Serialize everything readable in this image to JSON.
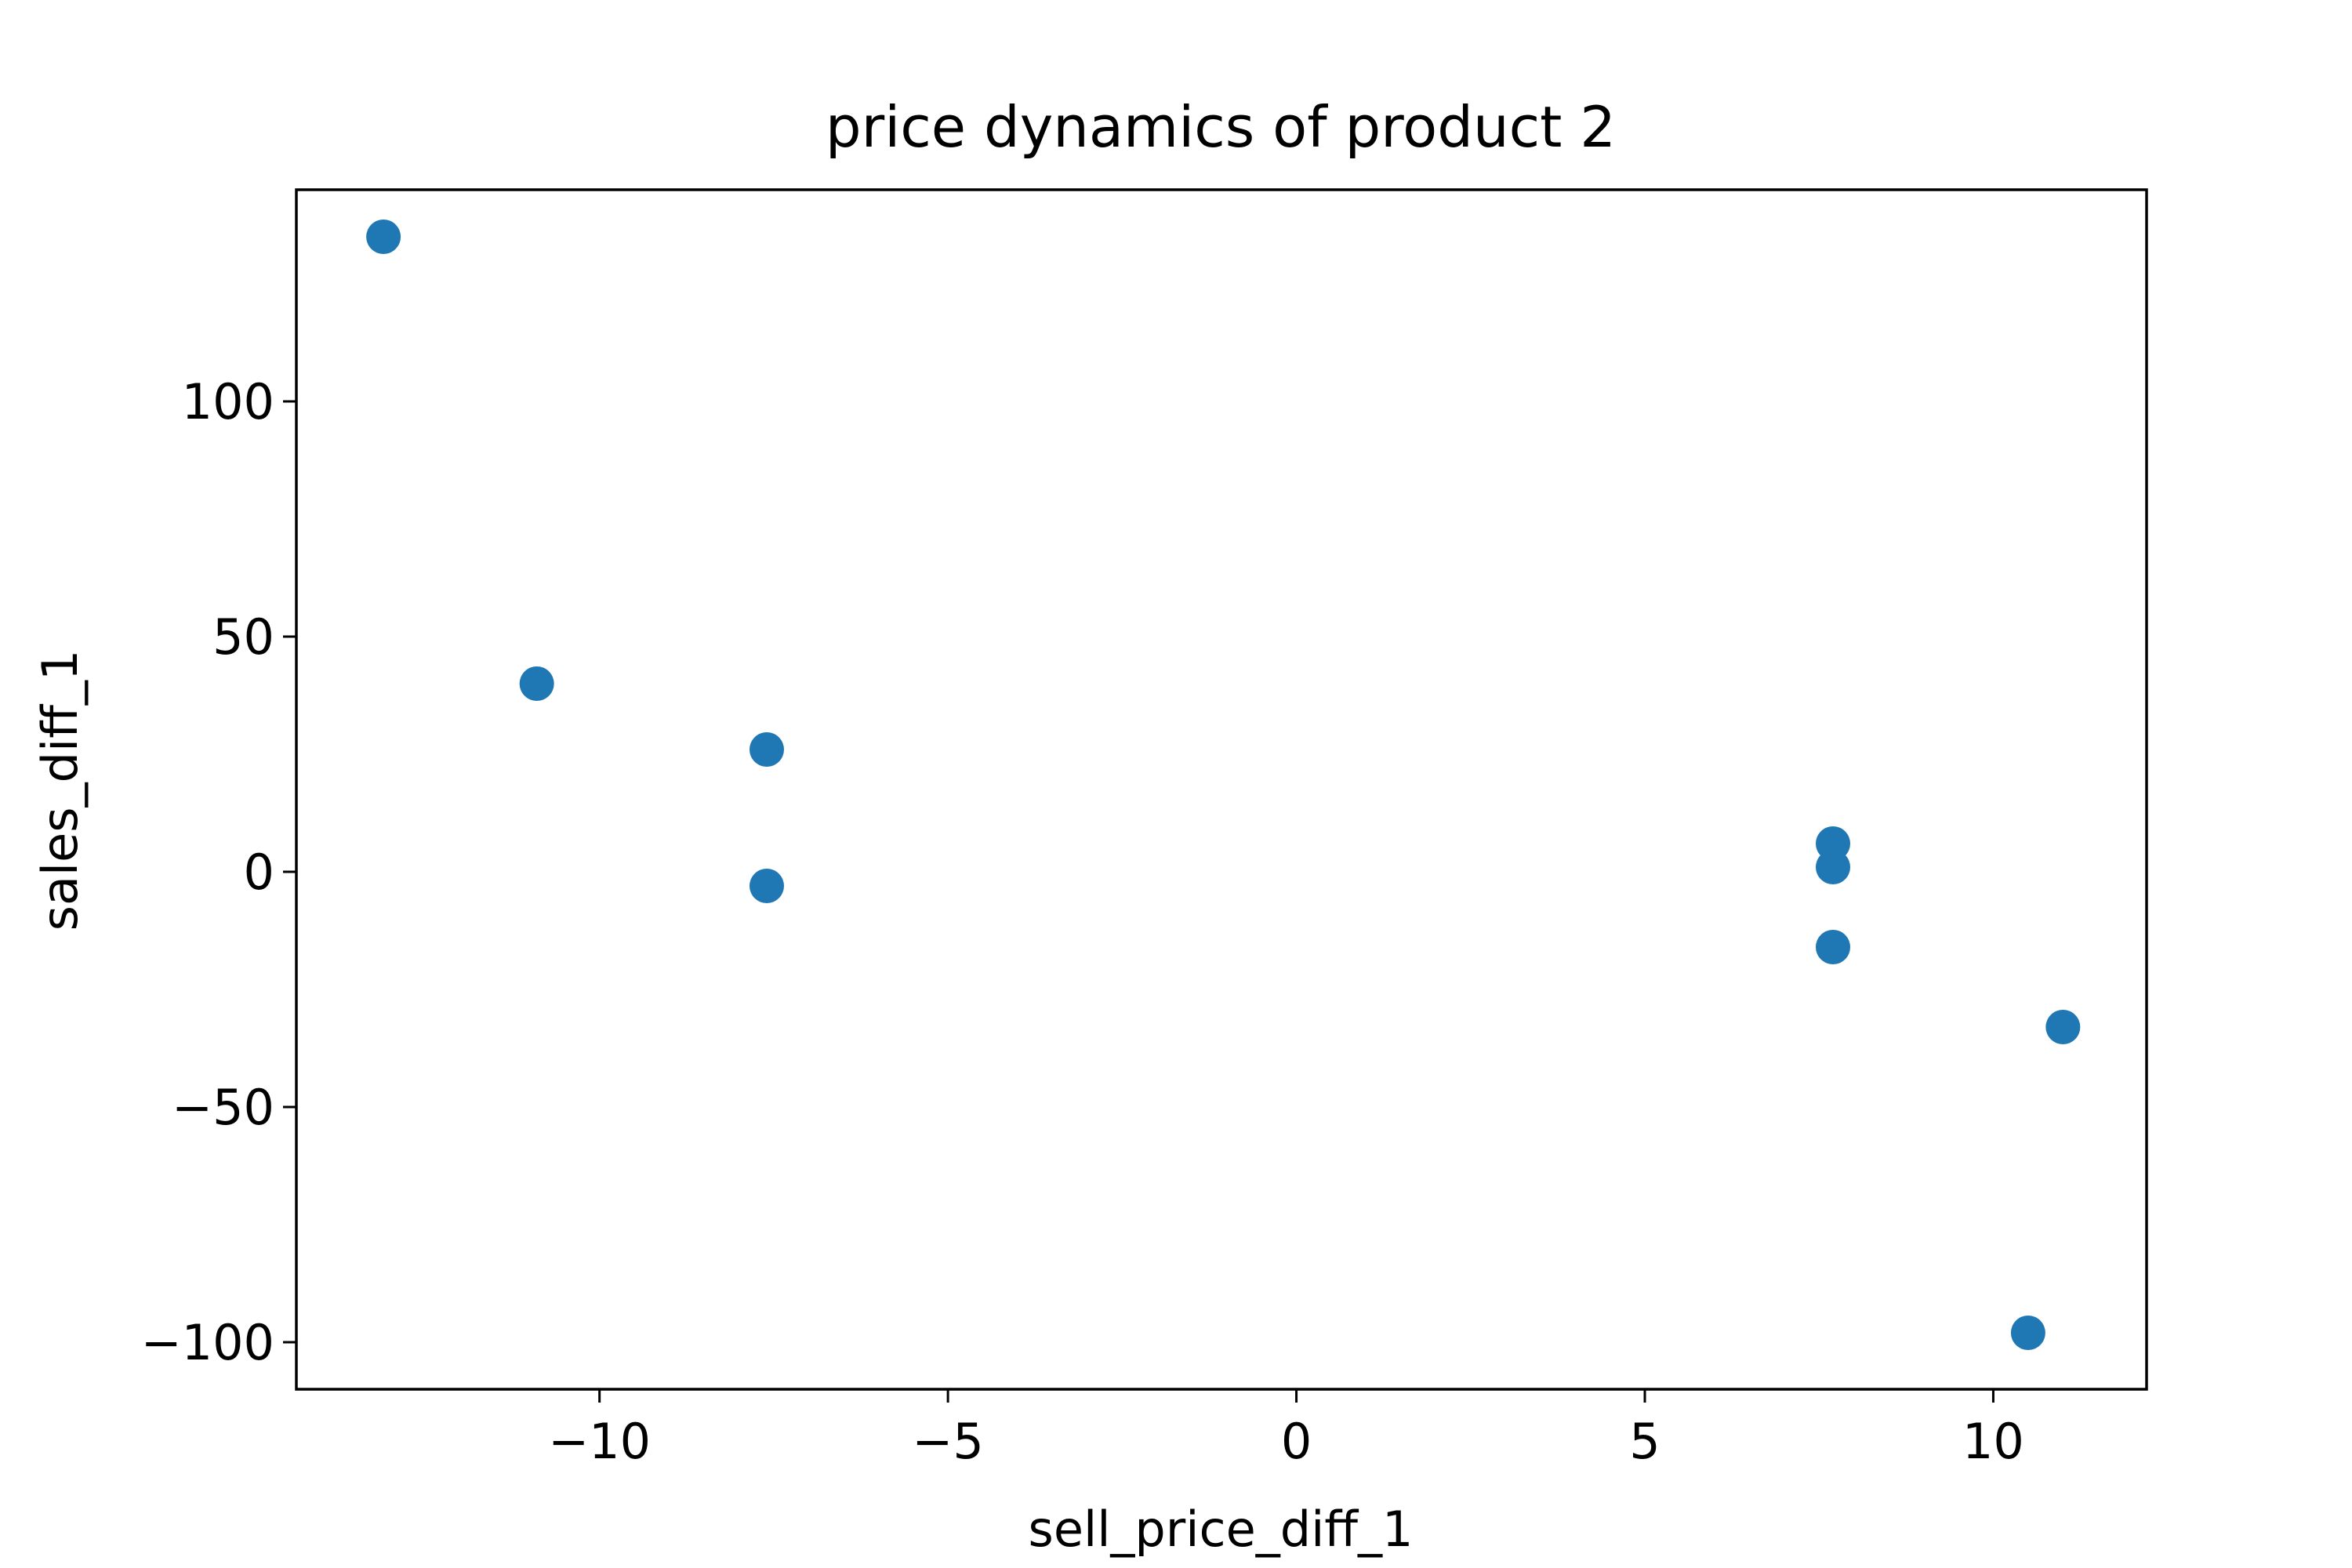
{
  "chart_data": {
    "type": "scatter",
    "title": "price dynamics of product 2",
    "xlabel": "sell_price_diff_1",
    "ylabel": "sales_diff_1",
    "xlim": [
      -14.35,
      12.2
    ],
    "ylim": [
      -110,
      145
    ],
    "xticks": [
      -10,
      -5,
      0,
      5,
      10
    ],
    "yticks": [
      -100,
      -50,
      0,
      50,
      100
    ],
    "xtick_labels": [
      "−10",
      "−5",
      "0",
      "5",
      "10"
    ],
    "ytick_labels": [
      "−100",
      "−50",
      "0",
      "50",
      "100"
    ],
    "grid": false,
    "legend": "none",
    "marker_color": "#1f77b4",
    "points": [
      {
        "x": -13.1,
        "y": 135
      },
      {
        "x": -10.9,
        "y": 40
      },
      {
        "x": -7.6,
        "y": 26
      },
      {
        "x": -7.6,
        "y": -3
      },
      {
        "x": 7.7,
        "y": 6
      },
      {
        "x": 7.7,
        "y": 1
      },
      {
        "x": 7.7,
        "y": -16
      },
      {
        "x": 11.0,
        "y": -33
      },
      {
        "x": 10.5,
        "y": -98
      }
    ]
  }
}
